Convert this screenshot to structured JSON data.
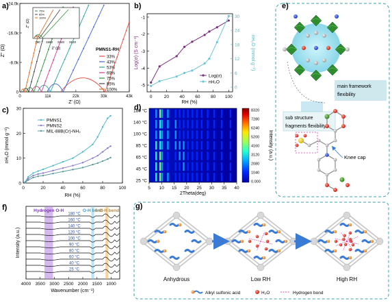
{
  "panels": {
    "a": {
      "letter": "a)",
      "legend_title": "PMNS1-RH",
      "x_axis_label": "Z' (Ω)",
      "y_axis_label": "Z'' (Ω)",
      "inset_x_label": "Z' (Ω)",
      "inset_y_label": "Z'' (Ω)",
      "inset_legend": [
        "75%",
        "85%",
        "100%"
      ]
    },
    "b": {
      "letter": "b)",
      "ylabel_left": "Log(σ) (S cm⁻¹)",
      "ylabel_right": "nH₂O (mmol g⁻¹)",
      "xlabel": "RH (%)",
      "legend": [
        "Log(σ)",
        "nH₂O"
      ]
    },
    "c": {
      "letter": "c)",
      "xlabel": "RH (%)",
      "ylabel": "nH₂O (mmol g⁻¹)",
      "legend": [
        "PMNS1",
        "PMNS2",
        "MIL-88B(Cr)-NH₂"
      ]
    },
    "d": {
      "letter": "d)",
      "xlabel": "2Theta(deg)",
      "colorbar_label": "Intensity (a.u.)",
      "colorbar_ticks": [
        "8320",
        "7280",
        "6240",
        "5200",
        "4160",
        "3120",
        "2080",
        "1040",
        "0.000"
      ],
      "temps": [
        "180 °C",
        "140 °C",
        "100 °C",
        "85 °C",
        "65 °C",
        "45 °C",
        "25 °C"
      ],
      "xticks": [
        "5",
        "10",
        "15",
        "20",
        "25",
        "30",
        "35",
        "40"
      ]
    },
    "e": {
      "letter": "e)",
      "label_main": [
        "main framework",
        "flexibility"
      ],
      "label_sub": [
        "sub structure",
        "fragments flexibility"
      ],
      "label_knee": "Knee cap"
    },
    "f": {
      "letter": "f)",
      "xlabel": "Wavenumber (cm⁻¹)",
      "ylabel": "Intensity (a.u.)",
      "band_labels": [
        "Hydrogen O-H",
        "O-H bend",
        "S-O-H bend"
      ],
      "band_colors": [
        "#b07ee0",
        "#7fd0ee",
        "#f0b050"
      ],
      "temps": [
        "180 °C",
        "160 °C",
        "140 °C",
        "120 °C",
        "100 °C",
        "90 °C",
        "80 °C",
        "60 °C",
        "40 °C",
        "25 °C"
      ],
      "xticks": [
        "4000",
        "3500",
        "3000",
        "2500",
        "2000",
        "1500",
        "1000"
      ]
    },
    "g": {
      "letter": "g)",
      "stages": [
        "Anhydrous",
        "Low RH",
        "High RH"
      ],
      "legend": [
        "Alkyl sulfonic acid",
        "H₂O",
        "Hydrogen bond"
      ]
    }
  },
  "chart_data": [
    {
      "panel": "a",
      "type": "line",
      "title": "",
      "xlabel": "Z' (Ω)",
      "ylabel": "Z'' (Ω)",
      "xlim": [
        0,
        43000
      ],
      "ylim": [
        0,
        -24000
      ],
      "xticks": [
        "0",
        "11k",
        "22k",
        "33k",
        "43k"
      ],
      "yticks": [
        "0",
        "-8.0k",
        "-16.0k",
        "-24.0k"
      ],
      "series": [
        {
          "name": "33%",
          "color": "#e8483c",
          "arc": [
            16000,
            33500,
            3800
          ],
          "tail": [
            [
              33500,
              0
            ],
            [
              43000,
              -19000
            ]
          ]
        },
        {
          "name": "43%",
          "color": "#3c62d8",
          "arc": [
            10800,
            17000,
            2200
          ],
          "tail": [
            [
              17000,
              0
            ],
            [
              33000,
              -23500
            ]
          ]
        },
        {
          "name": "53%",
          "color": "#2aa198",
          "arc": [
            7000,
            12000,
            1800
          ],
          "tail": [
            [
              12000,
              0
            ],
            [
              27000,
              -23500
            ]
          ]
        },
        {
          "name": "69%",
          "color": "#d23a8c",
          "arc": [
            4500,
            8500,
            1500
          ],
          "tail": [
            [
              8500,
              0
            ],
            [
              21000,
              -23000
            ]
          ]
        },
        {
          "name": "75%",
          "color": "#2f8f3a",
          "arc": [
            2500,
            5500,
            1200
          ],
          "tail": [
            [
              5500,
              0
            ],
            [
              17000,
              -23000
            ]
          ]
        },
        {
          "name": "85%",
          "color": "#444444",
          "arc": [
            1200,
            3500,
            1000
          ],
          "tail": [
            [
              3500,
              0
            ],
            [
              12000,
              -22000
            ]
          ]
        },
        {
          "name": "100%",
          "color": "#e06a1a",
          "arc": [
            500,
            2000,
            800
          ],
          "tail": [
            [
              2000,
              0
            ],
            [
              9000,
              -21000
            ]
          ]
        }
      ]
    },
    {
      "panel": "a-inset",
      "type": "line",
      "xlabel": "Z' (Ω)",
      "ylabel": "Z'' (Ω)",
      "xticks": [
        "780",
        "1560",
        "2340",
        "3120"
      ],
      "series": [
        {
          "name": "75%",
          "color": "#2f8f3a"
        },
        {
          "name": "85%",
          "color": "#444444"
        },
        {
          "name": "100%",
          "color": "#e06a1a"
        }
      ]
    },
    {
      "panel": "b",
      "type": "line",
      "xlabel": "RH (%)",
      "ylabel": "Log(σ) (S cm⁻¹)",
      "ylabel_right": "nH₂O (mmol g⁻¹)",
      "xlim": [
        -5,
        105
      ],
      "ylim_left": [
        -5.4,
        -0.8
      ],
      "ylim_right": [
        -2,
        31
      ],
      "xticks": [
        0,
        20,
        40,
        60,
        80,
        100
      ],
      "yticks_left": [
        -5,
        -4,
        -3,
        -2,
        -1
      ],
      "yticks_right": [
        0,
        6,
        12,
        18,
        24,
        30
      ],
      "series": [
        {
          "name": "Log(σ)",
          "axis": "left",
          "color": "#7a2e7a",
          "x": [
            0,
            11,
            33,
            43,
            53,
            69,
            75,
            85,
            100
          ],
          "y": [
            -4.85,
            -3.9,
            -3.3,
            -2.75,
            -2.45,
            -2.05,
            -1.85,
            -1.6,
            -1.2
          ]
        },
        {
          "name": "nH₂O",
          "axis": "right",
          "color": "#6cc6d6",
          "x": [
            0,
            11,
            33,
            43,
            53,
            69,
            75,
            85,
            100
          ],
          "y": [
            0.5,
            2.5,
            4.5,
            6,
            7,
            10,
            12,
            19,
            30
          ]
        }
      ]
    },
    {
      "panel": "c",
      "type": "line",
      "xlabel": "RH (%)",
      "ylabel": "nH₂O (mmol g⁻¹)",
      "xlim": [
        0,
        100
      ],
      "ylim": [
        0,
        30
      ],
      "xticks": [
        0,
        20,
        40,
        60,
        80,
        100
      ],
      "yticks": [
        0,
        10,
        20,
        30
      ],
      "series": [
        {
          "name": "PMNS1",
          "color": "#4fb8c8",
          "x": [
            2,
            5,
            10,
            15,
            20,
            30,
            40,
            50,
            60,
            70,
            75,
            80,
            85,
            88
          ],
          "y": [
            0.5,
            2.5,
            4,
            4.8,
            5.5,
            7,
            8.5,
            10,
            12.5,
            15.5,
            18.5,
            22.5,
            26,
            27
          ]
        },
        {
          "name": "PMNS2",
          "color": "#8c7cc8",
          "x": [
            2,
            5,
            10,
            15,
            20,
            30,
            40,
            50,
            60,
            70,
            75,
            80,
            85,
            88
          ],
          "y": [
            0.3,
            1.8,
            3,
            3.6,
            4,
            5,
            6,
            7,
            8.2,
            10,
            11,
            12.5,
            14,
            14.8
          ]
        },
        {
          "name": "MIL-88B(Cr)-NH₂",
          "color": "#5a9a9a",
          "x": [
            2,
            5,
            10,
            15,
            20,
            30,
            40,
            50,
            60,
            70,
            75,
            80,
            85,
            88
          ],
          "y": [
            0.2,
            1.2,
            2.2,
            2.7,
            3,
            3.8,
            4.6,
            5.4,
            6.2,
            7.4,
            8,
            8.8,
            9.6,
            10.2
          ]
        }
      ]
    },
    {
      "panel": "d",
      "type": "heatmap",
      "xlabel": "2Theta(deg)",
      "xlim": [
        5,
        40
      ],
      "y_categories": [
        "25 °C",
        "45 °C",
        "65 °C",
        "85 °C",
        "100 °C",
        "140 °C",
        "180 °C"
      ],
      "zlim": [
        0,
        8320
      ],
      "colormap": [
        "#0000a8",
        "#0028ff",
        "#00a0ff",
        "#28ffd0",
        "#a0ff5a",
        "#ffe800",
        "#ff7000",
        "#e00000",
        "#800000"
      ],
      "peaks_2theta": [
        7.8,
        9.4,
        10.2,
        12.5,
        15.6,
        17.2,
        18.8,
        20.5,
        22.3,
        24.1,
        26.0,
        28.4,
        31.0,
        34.0,
        37.5
      ],
      "peak_intensity": [
        3200,
        4200,
        2600,
        2100,
        1900,
        1700,
        1800,
        1500,
        1400,
        1300,
        1200,
        1100,
        1000,
        900,
        800
      ]
    }
  ]
}
